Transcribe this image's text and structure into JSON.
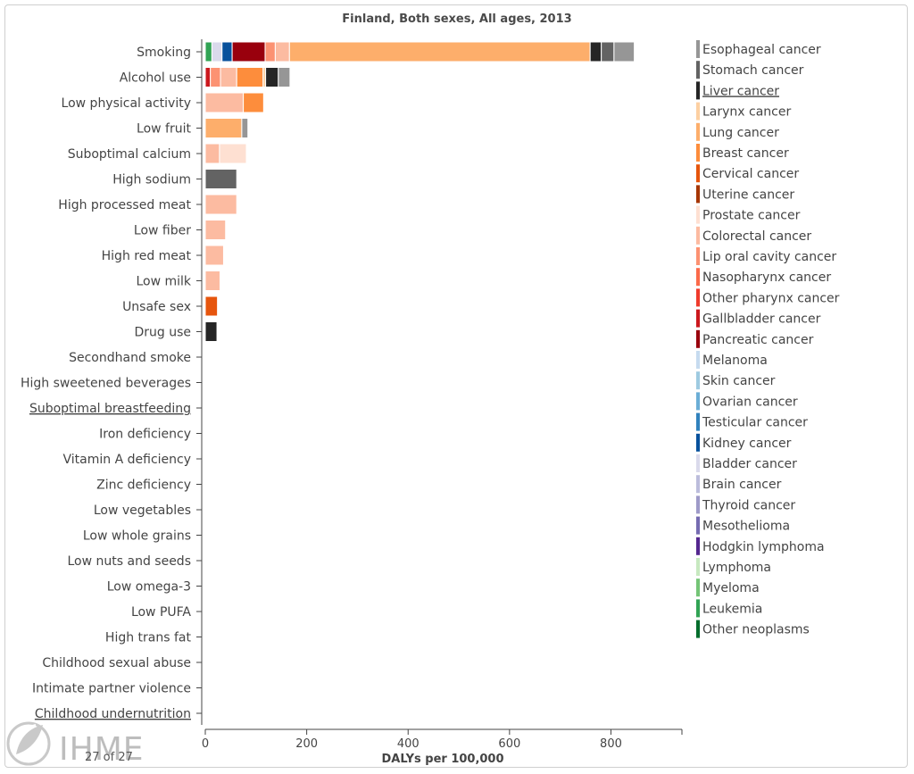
{
  "chart_data": {
    "type": "bar",
    "stacked": true,
    "orientation": "horizontal",
    "title": "Finland, Both sexes, All ages, 2013",
    "xlabel": "DALYs per 100,000",
    "ylabel": "",
    "xlim": [
      0,
      940
    ],
    "xticks": [
      0,
      200,
      400,
      600,
      800
    ],
    "categories": [
      "Smoking",
      "Alcohol use",
      "Low physical activity",
      "Low fruit",
      "Suboptimal calcium",
      "High sodium",
      "High processed meat",
      "Low fiber",
      "High red meat",
      "Low milk",
      "Unsafe sex",
      "Drug use",
      "Secondhand smoke",
      "High sweetened beverages",
      "Suboptimal breastfeeding",
      "Iron deficiency",
      "Vitamin A deficiency",
      "Zinc deficiency",
      "Low vegetables",
      "Low whole grains",
      "Low nuts and seeds",
      "Low omega-3",
      "Low PUFA",
      "High trans fat",
      "Childhood sexual abuse",
      "Intimate partner violence",
      "Childhood undernutrition"
    ],
    "underlined_categories": [
      "Suboptimal breastfeeding",
      "Childhood undernutrition"
    ],
    "legend": [
      {
        "name": "Esophageal cancer",
        "color": "#969696"
      },
      {
        "name": "Stomach cancer",
        "color": "#636363"
      },
      {
        "name": "Liver cancer",
        "color": "#252525"
      },
      {
        "name": "Larynx cancer",
        "color": "#fdd0a2"
      },
      {
        "name": "Lung cancer",
        "color": "#fdae6b"
      },
      {
        "name": "Breast cancer",
        "color": "#fd8d3c"
      },
      {
        "name": "Cervical cancer",
        "color": "#e6550d"
      },
      {
        "name": "Uterine cancer",
        "color": "#a63603"
      },
      {
        "name": "Prostate cancer",
        "color": "#fee0d2"
      },
      {
        "name": "Colorectal cancer",
        "color": "#fcbba1"
      },
      {
        "name": "Lip oral cavity cancer",
        "color": "#fc9272"
      },
      {
        "name": "Nasopharynx cancer",
        "color": "#fb6a4a"
      },
      {
        "name": "Other pharynx cancer",
        "color": "#ef3b2c"
      },
      {
        "name": "Gallbladder cancer",
        "color": "#cb181d"
      },
      {
        "name": "Pancreatic cancer",
        "color": "#99000d"
      },
      {
        "name": "Melanoma",
        "color": "#c6dbef"
      },
      {
        "name": "Skin cancer",
        "color": "#9ecae1"
      },
      {
        "name": "Ovarian cancer",
        "color": "#6baed6"
      },
      {
        "name": "Testicular cancer",
        "color": "#3182bd"
      },
      {
        "name": "Kidney cancer",
        "color": "#08519c"
      },
      {
        "name": "Bladder cancer",
        "color": "#dadaeb"
      },
      {
        "name": "Brain cancer",
        "color": "#bcbddc"
      },
      {
        "name": "Thyroid cancer",
        "color": "#9e9ac8"
      },
      {
        "name": "Mesothelioma",
        "color": "#756bb1"
      },
      {
        "name": "Hodgkin lymphoma",
        "color": "#54278f"
      },
      {
        "name": "Lymphoma",
        "color": "#c7e9c0"
      },
      {
        "name": "Myeloma",
        "color": "#74c476"
      },
      {
        "name": "Leukemia",
        "color": "#31a354"
      },
      {
        "name": "Other neoplasms",
        "color": "#006d2c"
      }
    ],
    "underlined_legend": [
      "Liver cancer"
    ],
    "segments": {
      "Smoking": [
        [
          "Leukemia",
          13
        ],
        [
          "Bladder cancer",
          20
        ],
        [
          "Kidney cancer",
          20
        ],
        [
          "Pancreatic cancer",
          65
        ],
        [
          "Lip oral cavity cancer",
          20
        ],
        [
          "Colorectal cancer",
          28
        ],
        [
          "Lung cancer",
          593
        ],
        [
          "Liver cancer",
          22
        ],
        [
          "Stomach cancer",
          25
        ],
        [
          "Esophageal cancer",
          40
        ]
      ],
      "Alcohol use": [
        [
          "Gallbladder cancer",
          10
        ],
        [
          "Lip oral cavity cancer",
          20
        ],
        [
          "Colorectal cancer",
          32
        ],
        [
          "Breast cancer",
          52
        ],
        [
          "Larynx cancer",
          5
        ],
        [
          "Liver cancer",
          25
        ],
        [
          "Esophageal cancer",
          23
        ]
      ],
      "Low physical activity": [
        [
          "Colorectal cancer",
          75
        ],
        [
          "Breast cancer",
          40
        ]
      ],
      "Low fruit": [
        [
          "Lung cancer",
          72
        ],
        [
          "Esophageal cancer",
          12
        ]
      ],
      "Suboptimal calcium": [
        [
          "Colorectal cancer",
          28
        ],
        [
          "Prostate cancer",
          53
        ]
      ],
      "High sodium": [
        [
          "Stomach cancer",
          62
        ]
      ],
      "High processed meat": [
        [
          "Colorectal cancer",
          62
        ]
      ],
      "Low fiber": [
        [
          "Colorectal cancer",
          40
        ]
      ],
      "High red meat": [
        [
          "Colorectal cancer",
          36
        ]
      ],
      "Low milk": [
        [
          "Colorectal cancer",
          29
        ]
      ],
      "Unsafe sex": [
        [
          "Cervical cancer",
          24
        ]
      ],
      "Drug use": [
        [
          "Liver cancer",
          23
        ]
      ],
      "Secondhand smoke": [
        [
          "Lung cancer",
          1
        ]
      ]
    }
  },
  "footer": {
    "brand": "IHME",
    "pager": "27 of 27"
  }
}
